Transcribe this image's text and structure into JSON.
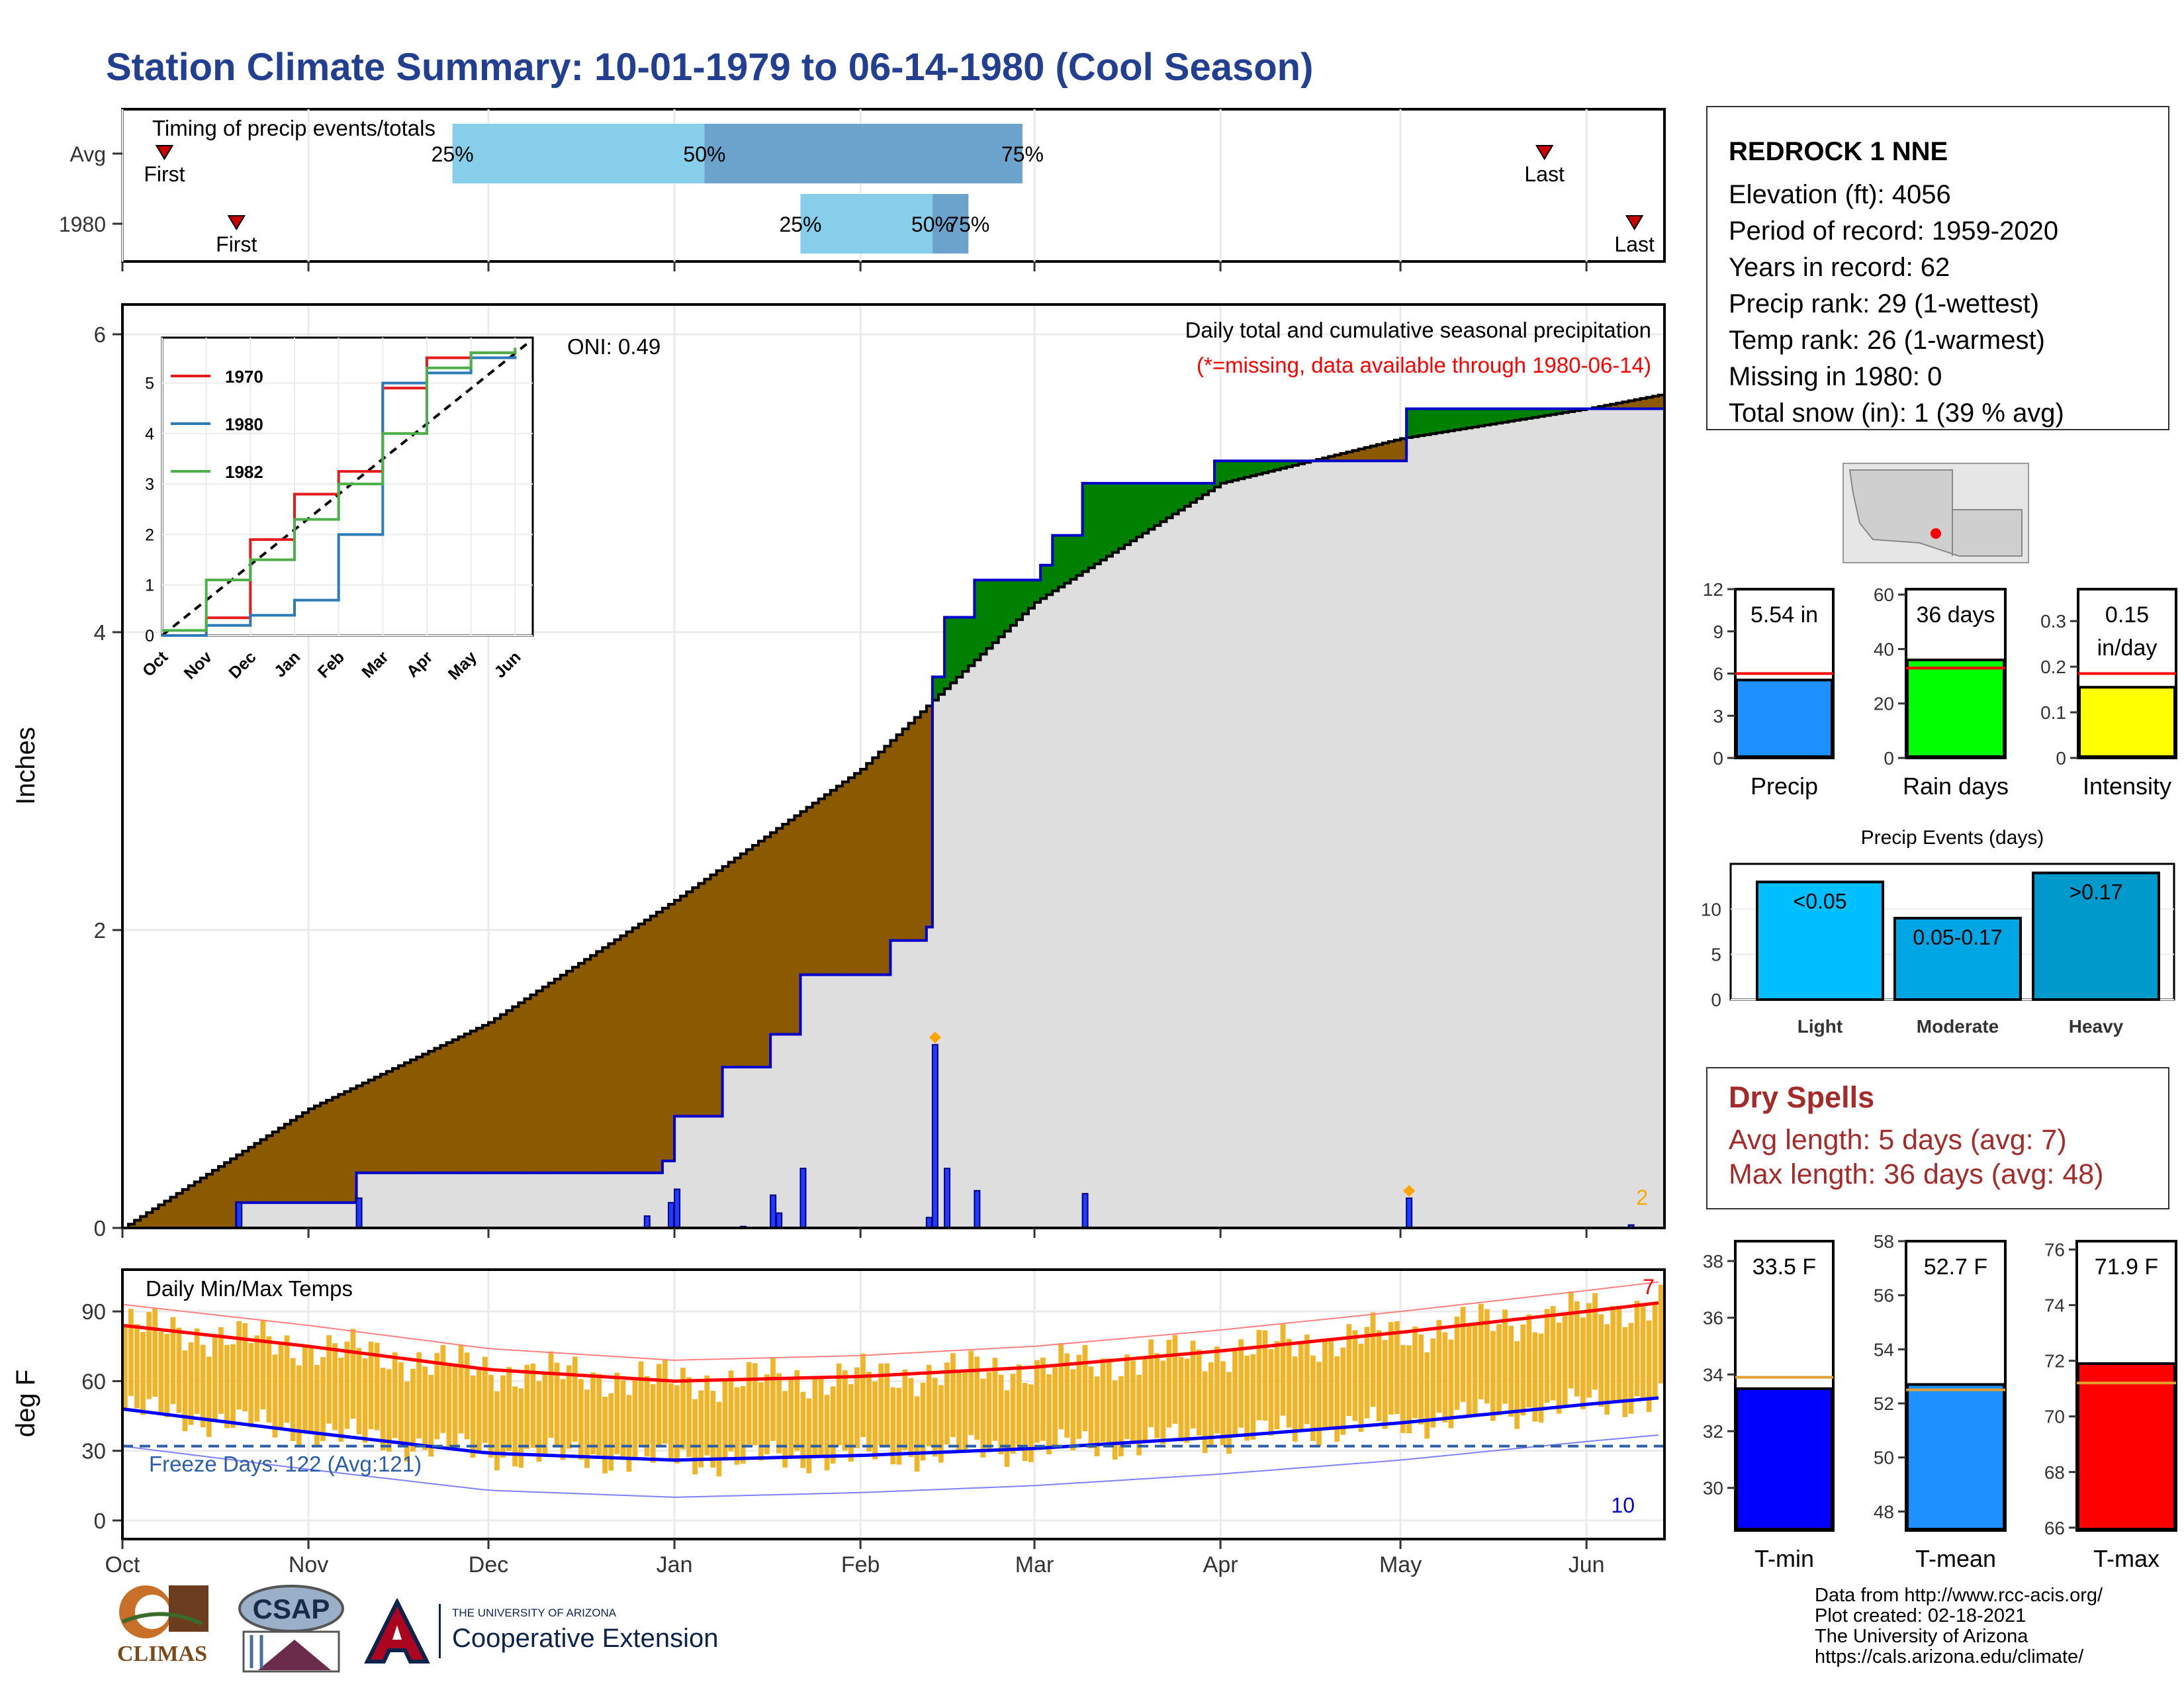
{
  "title": "Station Climate Summary: 10-01-1979 to 06-14-1980 (Cool Season)",
  "timing": {
    "label": "Timing of precip events/totals",
    "rows": [
      "Avg",
      "1980"
    ],
    "first_label": "First",
    "last_label": "Last",
    "pct_labels": [
      "25%",
      "50%",
      "75%"
    ],
    "avg": {
      "first": "1979-10-08",
      "p25": "1979-11-25",
      "p50": "1980-01-06",
      "p75": "1980-02-28",
      "last": "1980-05-25"
    },
    "y1980": {
      "first": "1979-10-20",
      "p25": "1980-01-22",
      "p50": "1980-02-13",
      "p75": "1980-02-19",
      "last": "1980-06-09"
    },
    "colors": {
      "q1": "#87ceeb",
      "q2": "#6ba3cc",
      "marker": "#cc0000"
    }
  },
  "precip_panel": {
    "ylabel": "Inches",
    "oni": "ONI: 0.49",
    "caption": "Daily total and cumulative seasonal precipitation",
    "missing_note": "(*=missing, data available through 1980-06-14)",
    "corner_count": "2",
    "yticks": [
      0,
      2,
      4,
      6
    ],
    "ylim": [
      0,
      6.2
    ],
    "colors": {
      "deficit": "#8b5a00",
      "surplus": "#008000",
      "cum_fill": "#dedede",
      "obs_line": "#0000cc",
      "avg_line": "#000000",
      "bar": "#1e3cff",
      "highlight": "#ffa500"
    }
  },
  "inset": {
    "yticks": [
      0,
      1,
      2,
      3,
      4,
      5
    ],
    "xlabels": [
      "Oct",
      "Nov",
      "Dec",
      "Jan",
      "Feb",
      "Mar",
      "Apr",
      "May",
      "Jun"
    ],
    "legend": [
      {
        "name": "1970",
        "color": "#e31a1c"
      },
      {
        "name": "1980",
        "color": "#2c7bb6"
      },
      {
        "name": "1982",
        "color": "#4daf4a"
      }
    ]
  },
  "temp_panel": {
    "ylabel": "deg F",
    "label": "Daily Min/Max Temps",
    "freeze_label": "Freeze Days: 122 (Avg:121)",
    "corner_top": "7",
    "corner_bottom": "10",
    "yticks": [
      0,
      30,
      60,
      90
    ],
    "ylim": [
      -8,
      108
    ],
    "freeze_line": 32,
    "colors": {
      "bar": "#f0b429",
      "max": "#ff0000",
      "min": "#0000ff",
      "freeze": "#2a5ea8"
    }
  },
  "x_axis": {
    "labels": [
      "Oct",
      "Nov",
      "Dec",
      "Jan",
      "Feb",
      "Mar",
      "Apr",
      "May",
      "Jun"
    ]
  },
  "station": {
    "name": "REDROCK 1 NNE",
    "lines": [
      "Elevation (ft): 4056",
      "Period of record: 1959-2020",
      "Years in record: 62",
      "Precip rank: 29 (1-wettest)",
      "Temp rank: 26 (1-warmest)",
      "Missing in 1980: 0",
      "Total snow (in): 1 (39 % avg)"
    ]
  },
  "summary_bars": [
    {
      "label": "Precip",
      "value_text": "5.54 in",
      "value": 5.54,
      "avg": 6.0,
      "ylim": [
        0,
        12
      ],
      "yticks": [
        0,
        3,
        6,
        9,
        12
      ],
      "color": "#1e90ff"
    },
    {
      "label": "Rain days",
      "value_text": "36 days",
      "value": 36,
      "avg": 33,
      "ylim": [
        0,
        62
      ],
      "yticks": [
        0,
        20,
        40,
        60
      ],
      "color": "#00ff00"
    },
    {
      "label": "Intensity",
      "value_text": "0.15",
      "value_text2": "in/day",
      "value": 0.155,
      "avg": 0.185,
      "ylim": [
        0,
        0.37
      ],
      "yticks": [
        0.0,
        0.1,
        0.2,
        0.3
      ],
      "color": "#ffff00"
    }
  ],
  "precip_events": {
    "title": "Precip Events (days)",
    "ylim": [
      0,
      15
    ],
    "yticks": [
      0,
      5,
      10
    ],
    "bars": [
      {
        "category": "Light",
        "label": "<0.05",
        "value": 13,
        "color": "#00bfff"
      },
      {
        "category": "Moderate",
        "label": "0.05-0.17",
        "value": 9,
        "color": "#00a5e3"
      },
      {
        "category": "Heavy",
        "label": ">0.17",
        "value": 14,
        "color": "#0099cc"
      }
    ]
  },
  "dry_spells": {
    "title": "Dry Spells",
    "lines": [
      "Avg length: 5 days (avg: 7)",
      "Max length: 36 days (avg: 48)"
    ]
  },
  "temp_bars": [
    {
      "label": "T-min",
      "value_text": "33.5 F",
      "value": 33.5,
      "avg": 33.9,
      "ylim": [
        28.5,
        38.7
      ],
      "yticks": [
        30,
        32,
        34,
        36,
        38
      ],
      "color": "#0000ff"
    },
    {
      "label": "T-mean",
      "value_text": "52.7 F",
      "value": 52.7,
      "avg": 52.5,
      "ylim": [
        47.3,
        58.0
      ],
      "yticks": [
        48,
        50,
        52,
        54,
        56,
        58
      ],
      "color": "#1e90ff"
    },
    {
      "label": "T-max",
      "value_text": "71.9 F",
      "value": 71.9,
      "avg": 71.2,
      "ylim": [
        65.9,
        76.3
      ],
      "yticks": [
        66,
        68,
        70,
        72,
        74,
        76
      ],
      "color": "#ff0000"
    }
  ],
  "logos": {
    "climas": "CLIMAS",
    "csap": "CSAP",
    "ua_top": "THE UNIVERSITY OF ARIZONA",
    "ua_bottom": "Cooperative Extension"
  },
  "credits": [
    "Data from http://www.rcc-acis.org/",
    "Plot created: 02-18-2021",
    "The University of Arizona",
    "https://cals.arizona.edu/climate/"
  ],
  "chart_data": [
    {
      "type": "area",
      "title": "Daily total and cumulative seasonal precipitation",
      "ylabel": "Inches",
      "ylim": [
        0,
        6.2
      ],
      "cumulative_observed_1980": [
        {
          "date": "1979-10-01",
          "value": 0.0
        },
        {
          "date": "1979-10-20",
          "value": 0.17
        },
        {
          "date": "1979-11-09",
          "value": 0.37
        },
        {
          "date": "1979-12-30",
          "value": 0.45
        },
        {
          "date": "1980-01-01",
          "value": 0.75
        },
        {
          "date": "1980-01-09",
          "value": 1.08
        },
        {
          "date": "1980-01-17",
          "value": 1.3
        },
        {
          "date": "1980-01-22",
          "value": 1.7
        },
        {
          "date": "1980-02-06",
          "value": 1.93
        },
        {
          "date": "1980-02-12",
          "value": 2.02
        },
        {
          "date": "1980-02-13",
          "value": 3.7
        },
        {
          "date": "1980-02-15",
          "value": 4.1
        },
        {
          "date": "1980-02-20",
          "value": 4.35
        },
        {
          "date": "1980-03-02",
          "value": 4.45
        },
        {
          "date": "1980-03-04",
          "value": 4.65
        },
        {
          "date": "1980-03-09",
          "value": 5.0
        },
        {
          "date": "1980-03-31",
          "value": 5.15
        },
        {
          "date": "1980-05-02",
          "value": 5.5
        },
        {
          "date": "1980-06-14",
          "value": 5.54
        }
      ],
      "cumulative_average": [
        {
          "date": "1979-10-01",
          "value": 0.0
        },
        {
          "date": "1979-11-01",
          "value": 0.8
        },
        {
          "date": "1979-12-01",
          "value": 1.38
        },
        {
          "date": "1980-01-01",
          "value": 2.2
        },
        {
          "date": "1980-02-01",
          "value": 3.08
        },
        {
          "date": "1980-03-01",
          "value": 4.2
        },
        {
          "date": "1980-04-01",
          "value": 5.0
        },
        {
          "date": "1980-05-01",
          "value": 5.3
        },
        {
          "date": "1980-06-01",
          "value": 5.5
        },
        {
          "date": "1980-06-14",
          "value": 5.6
        }
      ],
      "daily_precip": [
        {
          "date": "1979-10-20",
          "value": 0.17
        },
        {
          "date": "1979-11-09",
          "value": 0.2
        },
        {
          "date": "1979-12-27",
          "value": 0.08
        },
        {
          "date": "1979-12-31",
          "value": 0.17
        },
        {
          "date": "1980-01-01",
          "value": 0.26
        },
        {
          "date": "1980-01-12",
          "value": 0.01
        },
        {
          "date": "1980-01-17",
          "value": 0.22
        },
        {
          "date": "1980-01-18",
          "value": 0.1
        },
        {
          "date": "1980-01-22",
          "value": 0.4
        },
        {
          "date": "1980-02-12",
          "value": 0.07
        },
        {
          "date": "1980-02-13",
          "value": 1.23
        },
        {
          "date": "1980-02-15",
          "value": 0.4
        },
        {
          "date": "1980-02-20",
          "value": 0.25
        },
        {
          "date": "1980-03-09",
          "value": 0.23
        },
        {
          "date": "1980-05-02",
          "value": 0.2
        },
        {
          "date": "1980-06-08",
          "value": 0.02
        }
      ]
    },
    {
      "type": "line",
      "title": "Daily Min/Max Temps",
      "ylabel": "deg F",
      "ylim": [
        -8,
        108
      ],
      "freeze_days": 122,
      "freeze_days_avg": 121,
      "x": [
        "1979-10-01",
        "1979-11-01",
        "1979-12-01",
        "1980-01-01",
        "1980-02-01",
        "1980-03-01",
        "1980-04-01",
        "1980-05-01",
        "1980-06-01",
        "1980-06-14"
      ],
      "series": [
        {
          "name": "avg max",
          "values": [
            84,
            75,
            65,
            60,
            62,
            66,
            73,
            81,
            90,
            94
          ]
        },
        {
          "name": "avg min",
          "values": [
            48,
            38,
            29,
            26,
            28,
            31,
            36,
            42,
            50,
            53
          ]
        }
      ]
    },
    {
      "type": "line",
      "title": "",
      "x_labels": [
        "Oct",
        "Nov",
        "Dec",
        "Jan",
        "Feb",
        "Mar",
        "Apr",
        "May",
        "Jun"
      ],
      "series": [
        {
          "name": "1970",
          "x": [
            "Oct",
            "Nov",
            "Dec",
            "Jan",
            "Feb",
            "Mar",
            "Apr",
            "May",
            "Jun"
          ],
          "values": [
            0.0,
            0.35,
            1.9,
            2.8,
            3.25,
            4.9,
            5.5,
            5.6,
            5.65
          ]
        },
        {
          "name": "1980",
          "x": [
            "Oct",
            "Nov",
            "Dec",
            "Jan",
            "Feb",
            "Mar",
            "Apr",
            "May",
            "Jun"
          ],
          "values": [
            0.0,
            0.2,
            0.4,
            0.7,
            2.0,
            5.0,
            5.2,
            5.5,
            5.54
          ]
        },
        {
          "name": "1982",
          "x": [
            "Oct",
            "Nov",
            "Dec",
            "Jan",
            "Feb",
            "Mar",
            "Apr",
            "May",
            "Jun"
          ],
          "values": [
            0.1,
            1.1,
            1.5,
            2.3,
            3.0,
            4.0,
            5.3,
            5.6,
            5.7
          ]
        }
      ]
    },
    {
      "type": "bar",
      "categories": [
        "Precip",
        "Rain days",
        "Intensity"
      ],
      "values": [
        5.54,
        36,
        0.15
      ]
    },
    {
      "type": "bar",
      "title": "Precip Events (days)",
      "categories": [
        "Light",
        "Moderate",
        "Heavy"
      ],
      "values": [
        13,
        9,
        14
      ]
    },
    {
      "type": "bar",
      "categories": [
        "T-min",
        "T-mean",
        "T-max"
      ],
      "values": [
        33.5,
        52.7,
        71.9
      ]
    }
  ]
}
